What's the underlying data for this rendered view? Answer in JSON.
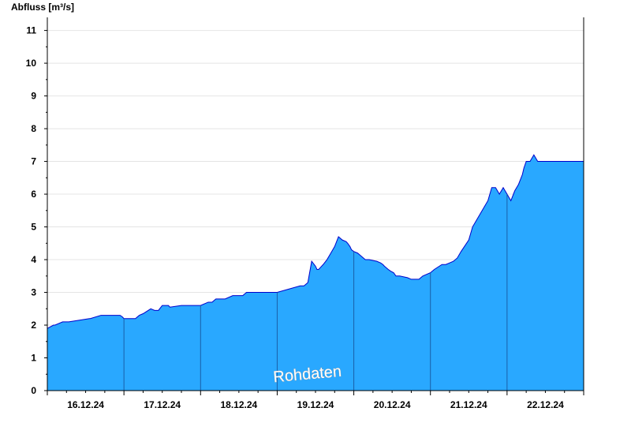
{
  "chart_data": {
    "type": "area",
    "ylabel": "Abfluss [m³/s]",
    "ylim": [
      0,
      11.4
    ],
    "yticks": [
      0,
      1,
      2,
      3,
      4,
      5,
      6,
      7,
      8,
      9,
      10,
      11
    ],
    "xlim": [
      0,
      7
    ],
    "day_boundaries": [
      1,
      2,
      3,
      4,
      5,
      6
    ],
    "xtick_labels": [
      {
        "pos": 0.5,
        "label": "16.12.24"
      },
      {
        "pos": 1.5,
        "label": "17.12.24"
      },
      {
        "pos": 2.5,
        "label": "18.12.24"
      },
      {
        "pos": 3.5,
        "label": "19.12.24"
      },
      {
        "pos": 4.5,
        "label": "20.12.24"
      },
      {
        "pos": 5.5,
        "label": "21.12.24"
      },
      {
        "pos": 6.5,
        "label": "22.12.24"
      }
    ],
    "grid": "horizontal",
    "fill_color": "#29a8ff",
    "line_color": "#0000cc",
    "annotation": "Rohdaten",
    "series": [
      {
        "x": [
          0.0,
          0.08,
          0.1,
          0.2,
          0.25,
          0.28,
          0.55,
          0.56,
          0.7,
          0.73,
          0.75,
          0.8,
          0.95,
          0.98,
          1.0,
          1.05,
          1.15,
          1.2,
          1.25,
          1.35,
          1.4,
          1.45,
          1.5,
          1.58,
          1.6,
          1.75,
          1.8,
          1.95,
          1.98,
          2.0,
          2.1,
          2.15,
          2.2,
          2.3,
          2.32,
          2.42,
          2.45,
          2.5,
          2.55,
          2.6,
          2.8,
          2.85,
          3.0,
          3.3,
          3.35,
          3.4,
          3.45,
          3.5,
          3.52,
          3.54,
          3.56,
          3.58,
          3.6,
          3.65,
          3.7,
          3.75,
          3.8,
          3.85,
          3.9,
          3.92,
          3.95,
          3.97,
          4.0,
          4.05,
          4.1,
          4.15,
          4.2,
          4.3,
          4.35,
          4.38,
          4.4,
          4.45,
          4.48,
          4.52,
          4.55,
          4.6,
          4.7,
          4.75,
          4.8,
          4.85,
          4.9,
          5.0,
          5.05,
          5.15,
          5.2,
          5.25,
          5.3,
          5.35,
          5.4,
          5.5,
          5.55,
          5.6,
          5.7,
          5.75,
          5.8,
          5.85,
          5.9,
          5.95,
          6.0,
          6.05,
          6.1,
          6.15,
          6.2,
          6.22,
          6.25,
          6.3,
          6.35,
          6.4,
          6.45,
          6.5,
          6.52,
          6.55,
          6.58,
          6.6,
          6.62,
          6.65,
          6.7,
          6.72,
          6.75,
          6.8,
          6.85,
          6.9,
          6.95,
          7.0
        ],
        "y": [
          1.9,
          2.0,
          2.0,
          2.1,
          2.1,
          2.1,
          2.2,
          2.2,
          2.3,
          2.3,
          2.3,
          2.3,
          2.3,
          2.25,
          2.2,
          2.2,
          2.2,
          2.3,
          2.35,
          2.5,
          2.45,
          2.45,
          2.6,
          2.6,
          2.55,
          2.6,
          2.6,
          2.6,
          2.6,
          2.6,
          2.7,
          2.7,
          2.8,
          2.8,
          2.8,
          2.9,
          2.9,
          2.9,
          2.9,
          3.0,
          3.0,
          3.0,
          3.0,
          3.2,
          3.2,
          3.3,
          3.95,
          3.8,
          3.7,
          3.7,
          3.75,
          3.8,
          3.85,
          4.0,
          4.2,
          4.4,
          4.7,
          4.6,
          4.55,
          4.5,
          4.4,
          4.3,
          4.25,
          4.2,
          4.1,
          4.0,
          4.0,
          3.95,
          3.9,
          3.85,
          3.8,
          3.7,
          3.65,
          3.6,
          3.5,
          3.5,
          3.45,
          3.4,
          3.4,
          3.4,
          3.5,
          3.6,
          3.7,
          3.85,
          3.85,
          3.9,
          3.95,
          4.05,
          4.25,
          4.6,
          5.0,
          5.2,
          5.6,
          5.8,
          6.2,
          6.2,
          6.0,
          6.2,
          6.0,
          5.8,
          6.1,
          6.3,
          6.6,
          6.8,
          7.0,
          7.0,
          7.2,
          7.0,
          7.0,
          7.0,
          7.0,
          7.0,
          7.0,
          7.0,
          7.0,
          7.0,
          7.0,
          7.0,
          7.0,
          7.0,
          7.0,
          7.0,
          7.0,
          7.0
        ]
      }
    ]
  }
}
